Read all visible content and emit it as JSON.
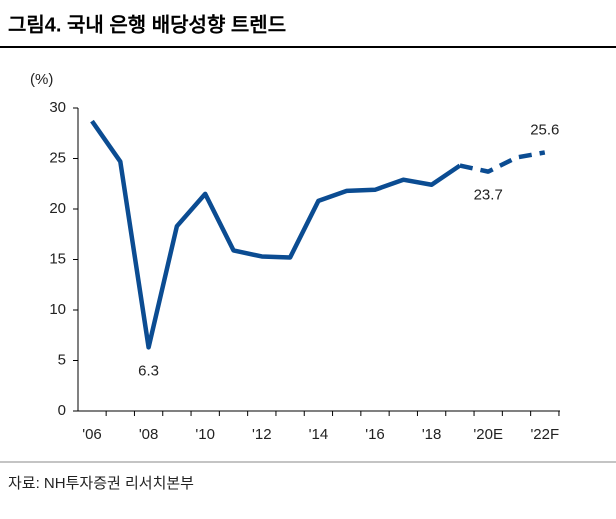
{
  "chart_data": {
    "type": "line",
    "title": "그림4. 국내 은행 배당성향 트렌드",
    "y_label": "(%)",
    "source": "자료: NH투자증권 리서치본부",
    "categories": [
      "'06",
      null,
      "'08",
      null,
      "'10",
      null,
      "'12",
      null,
      "'14",
      null,
      "'16",
      null,
      "'18",
      null,
      "'20E",
      null,
      "'22F"
    ],
    "series": [
      {
        "name": "배당성향",
        "color": "#0b4c92",
        "values": [
          28.7,
          24.7,
          6.3,
          18.3,
          21.5,
          15.9,
          15.3,
          15.2,
          20.8,
          21.8,
          21.9,
          22.9,
          22.4,
          24.3,
          23.7,
          25.1,
          25.6
        ]
      }
    ],
    "dashed_from": 13,
    "labeled_points": [
      2,
      14,
      16
    ],
    "ylim": [
      0,
      30
    ],
    "yticks": [
      0,
      5,
      10,
      15,
      20,
      25,
      30
    ],
    "grid": false
  }
}
